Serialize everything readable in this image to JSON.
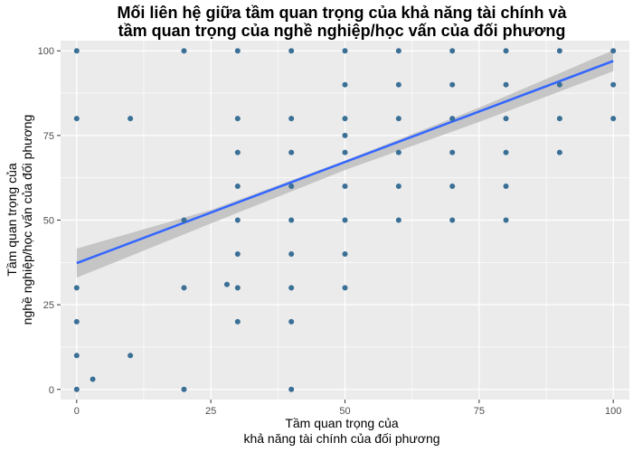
{
  "chart_data": {
    "type": "scatter",
    "title_lines": [
      "Mối liên hệ giữa tầm quan trọng của khả năng tài chính và",
      "tầm quan trọng của nghề nghiệp/học vấn của đối phương"
    ],
    "xlabel_lines": [
      "Tầm quan trọng của",
      "khả năng tài chính của đối phương"
    ],
    "ylabel_lines": [
      "Tầm quan trọng của",
      "nghề nghiệp/học vấn của đối phương"
    ],
    "xlim": [
      -3,
      103
    ],
    "ylim": [
      -3,
      103
    ],
    "x_ticks": [
      0,
      25,
      50,
      75,
      100
    ],
    "y_ticks": [
      0,
      25,
      50,
      75,
      100
    ],
    "grid": true,
    "point_color": "#3a6f96",
    "line_color": "#3366ff",
    "ribbon_color": "#bebebe",
    "panel_color": "#ebebeb",
    "points": [
      {
        "x": 0,
        "y": 100
      },
      {
        "x": 0,
        "y": 80
      },
      {
        "x": 0,
        "y": 30
      },
      {
        "x": 0,
        "y": 20
      },
      {
        "x": 0,
        "y": 10
      },
      {
        "x": 0,
        "y": 0
      },
      {
        "x": 3,
        "y": 3
      },
      {
        "x": 10,
        "y": 80
      },
      {
        "x": 10,
        "y": 10
      },
      {
        "x": 20,
        "y": 100
      },
      {
        "x": 20,
        "y": 50
      },
      {
        "x": 20,
        "y": 30
      },
      {
        "x": 20,
        "y": 0
      },
      {
        "x": 28,
        "y": 31
      },
      {
        "x": 30,
        "y": 100
      },
      {
        "x": 30,
        "y": 80
      },
      {
        "x": 30,
        "y": 70
      },
      {
        "x": 30,
        "y": 60
      },
      {
        "x": 30,
        "y": 50
      },
      {
        "x": 30,
        "y": 40
      },
      {
        "x": 30,
        "y": 30
      },
      {
        "x": 30,
        "y": 20
      },
      {
        "x": 40,
        "y": 100
      },
      {
        "x": 40,
        "y": 80
      },
      {
        "x": 40,
        "y": 70
      },
      {
        "x": 40,
        "y": 60
      },
      {
        "x": 40,
        "y": 50
      },
      {
        "x": 40,
        "y": 40
      },
      {
        "x": 40,
        "y": 30
      },
      {
        "x": 40,
        "y": 20
      },
      {
        "x": 40,
        "y": 0
      },
      {
        "x": 50,
        "y": 100
      },
      {
        "x": 50,
        "y": 90
      },
      {
        "x": 50,
        "y": 80
      },
      {
        "x": 50,
        "y": 75
      },
      {
        "x": 50,
        "y": 70
      },
      {
        "x": 50,
        "y": 60
      },
      {
        "x": 50,
        "y": 50
      },
      {
        "x": 50,
        "y": 40
      },
      {
        "x": 50,
        "y": 30
      },
      {
        "x": 60,
        "y": 100
      },
      {
        "x": 60,
        "y": 90
      },
      {
        "x": 60,
        "y": 80
      },
      {
        "x": 60,
        "y": 70
      },
      {
        "x": 60,
        "y": 60
      },
      {
        "x": 60,
        "y": 50
      },
      {
        "x": 70,
        "y": 100
      },
      {
        "x": 70,
        "y": 90
      },
      {
        "x": 70,
        "y": 80
      },
      {
        "x": 70,
        "y": 70
      },
      {
        "x": 70,
        "y": 60
      },
      {
        "x": 70,
        "y": 50
      },
      {
        "x": 80,
        "y": 100
      },
      {
        "x": 80,
        "y": 90
      },
      {
        "x": 80,
        "y": 80
      },
      {
        "x": 80,
        "y": 70
      },
      {
        "x": 80,
        "y": 60
      },
      {
        "x": 80,
        "y": 50
      },
      {
        "x": 90,
        "y": 100
      },
      {
        "x": 90,
        "y": 90
      },
      {
        "x": 90,
        "y": 80
      },
      {
        "x": 90,
        "y": 70
      },
      {
        "x": 100,
        "y": 100
      },
      {
        "x": 100,
        "y": 90
      },
      {
        "x": 100,
        "y": 80
      }
    ],
    "trend_line": {
      "x": [
        0,
        100
      ],
      "y": [
        37.3,
        97.0
      ]
    },
    "confidence_band": {
      "x": [
        0,
        25,
        50,
        75,
        100
      ],
      "lower": [
        33.0,
        49.0,
        64.8,
        79.0,
        94.0
      ],
      "upper": [
        41.6,
        53.0,
        67.6,
        83.2,
        100.2
      ]
    }
  }
}
